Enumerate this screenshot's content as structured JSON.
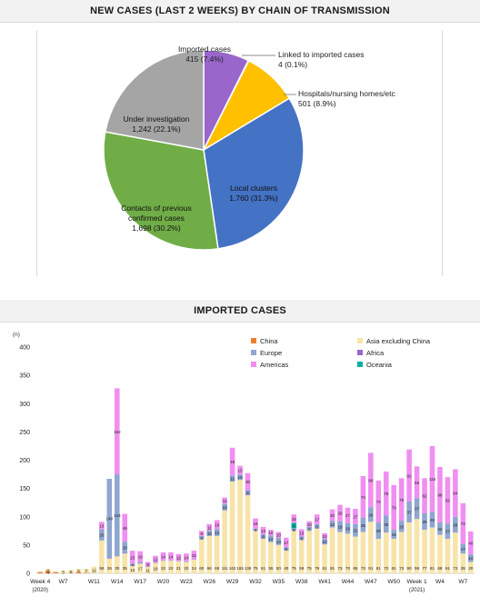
{
  "pie_header": "NEW CASES (LAST 2 WEEKS) BY CHAIN OF TRANSMISSION",
  "bar_header": "IMPORTED CASES",
  "chart_data": [
    {
      "type": "pie",
      "title": "NEW CASES (LAST 2 WEEKS) BY CHAIN OF TRANSMISSION",
      "slices": [
        {
          "name": "Imported cases",
          "value": 415,
          "label": "415 (7.4%)",
          "color": "#9966cc"
        },
        {
          "name": "Linked to imported cases",
          "value": 4,
          "label": "4 (0.1%)",
          "color": "#e89ad8"
        },
        {
          "name": "Hospitals/nursing homes/etc",
          "value": 501,
          "label": "501 (8.9%)",
          "color": "#ffc000"
        },
        {
          "name": "Local clusters",
          "value": 1760,
          "label": "1,760 (31.3%)",
          "color": "#4472c4"
        },
        {
          "name": "Contacts of previous confirmed cases",
          "value": 1698,
          "label": "1,698 (30.2%)",
          "color": "#70ad47"
        },
        {
          "name": "Under investigation",
          "value": 1242,
          "label": "1,242 (22.1%)",
          "color": "#a5a5a5"
        }
      ]
    },
    {
      "type": "bar",
      "stacked": true,
      "title": "IMPORTED CASES",
      "ylabel": "(n)",
      "ylim": [
        0,
        400
      ],
      "yticks": [
        0,
        50,
        100,
        150,
        200,
        250,
        300,
        350,
        400
      ],
      "grid": false,
      "legend_position": "top",
      "xtick_labels": [
        {
          "index": 0,
          "text": "Week 4",
          "sub": "(2020)"
        },
        {
          "index": 3,
          "text": "W7"
        },
        {
          "index": 7,
          "text": "W11"
        },
        {
          "index": 10,
          "text": "W14"
        },
        {
          "index": 13,
          "text": "W17"
        },
        {
          "index": 16,
          "text": "W20"
        },
        {
          "index": 19,
          "text": "W23"
        },
        {
          "index": 22,
          "text": "W26"
        },
        {
          "index": 25,
          "text": "W29"
        },
        {
          "index": 28,
          "text": "W32"
        },
        {
          "index": 31,
          "text": "W35"
        },
        {
          "index": 34,
          "text": "W38"
        },
        {
          "index": 37,
          "text": "W41"
        },
        {
          "index": 40,
          "text": "W44"
        },
        {
          "index": 43,
          "text": "W47"
        },
        {
          "index": 46,
          "text": "W50"
        },
        {
          "index": 49,
          "text": "Week 1",
          "sub": "(2021)"
        },
        {
          "index": 52,
          "text": "W4"
        },
        {
          "index": 55,
          "text": "W7"
        }
      ],
      "series": [
        {
          "name": "China",
          "color": "#ed7d31",
          "values": [
            2,
            4,
            2,
            0,
            1,
            2,
            1,
            0,
            0,
            0,
            0,
            0,
            0,
            0,
            0,
            0,
            0,
            0,
            0,
            0,
            0,
            0,
            0,
            0,
            0,
            0,
            0,
            0,
            0,
            0,
            0,
            0,
            0,
            0,
            0,
            0,
            0,
            0,
            0,
            0,
            0,
            0,
            0,
            0,
            0,
            0,
            0,
            0,
            0,
            0,
            0,
            0,
            0,
            0,
            0,
            0,
            0
          ]
        },
        {
          "name": "Asia excluding China",
          "color": "#f8e4a8",
          "values": [
            2,
            4,
            2,
            5,
            5,
            6,
            7,
            12,
            58,
            26,
            30,
            35,
            13,
            17,
            11,
            18,
            22,
            22,
            21,
            20,
            24,
            60,
            66,
            66,
            111,
            162,
            165,
            138,
            75,
            61,
            55,
            50,
            40,
            75,
            59,
            75,
            79,
            51,
            81,
            73,
            70,
            65,
            73,
            91,
            61,
            72,
            61,
            73,
            90,
            96,
            77,
            81,
            68,
            61,
            72,
            35,
            20
          ]
        },
        {
          "name": "Africa",
          "color": "#9966cc",
          "values": [
            0,
            0,
            0,
            0,
            0,
            0,
            0,
            0,
            0,
            1,
            1,
            1,
            0,
            0,
            0,
            0,
            0,
            0,
            0,
            0,
            0,
            0,
            0,
            0,
            0,
            0,
            0,
            1,
            0,
            0,
            0,
            0,
            0,
            0,
            0,
            0,
            0,
            0,
            0,
            0,
            0,
            0,
            0,
            0,
            0,
            0,
            0,
            0,
            0,
            0,
            0,
            0,
            0,
            0,
            0,
            0,
            0
          ]
        },
        {
          "name": "Europe",
          "color": "#8fa6cf",
          "values": [
            0,
            0,
            0,
            0,
            0,
            0,
            0,
            0,
            20,
            140,
            144,
            20,
            4,
            3,
            1,
            1,
            1,
            1,
            1,
            1,
            1,
            6,
            10,
            12,
            12,
            11,
            10,
            8,
            4,
            8,
            12,
            13,
            6,
            5,
            6,
            7,
            8,
            10,
            12,
            19,
            19,
            22,
            25,
            26,
            29,
            30,
            16,
            20,
            37,
            37,
            29,
            28,
            22,
            27,
            28,
            17,
            14
          ]
        },
        {
          "name": "Americas",
          "color": "#f08ff0",
          "values": [
            0,
            0,
            0,
            0,
            0,
            0,
            0,
            0,
            13,
            0,
            152,
            49,
            23,
            19,
            8,
            12,
            14,
            14,
            12,
            14,
            15,
            9,
            11,
            16,
            11,
            49,
            15,
            30,
            18,
            13,
            10,
            10,
            17,
            15,
            13,
            10,
            17,
            10,
            20,
            29,
            27,
            27,
            74,
            96,
            74,
            78,
            79,
            75,
            92,
            56,
            62,
            116,
            98,
            82,
            84,
            72,
            40
          ]
        },
        {
          "name": "Oceania",
          "color": "#00b0a0",
          "values": [
            0,
            0,
            0,
            0,
            0,
            0,
            0,
            0,
            0,
            0,
            0,
            0,
            0,
            0,
            0,
            0,
            0,
            0,
            0,
            0,
            0,
            0,
            0,
            0,
            0,
            0,
            0,
            0,
            0,
            0,
            0,
            0,
            0,
            9,
            0,
            0,
            0,
            0,
            0,
            0,
            0,
            0,
            0,
            0,
            0,
            0,
            0,
            0,
            0,
            0,
            0,
            0,
            0,
            0,
            0,
            0,
            0
          ]
        }
      ]
    }
  ]
}
